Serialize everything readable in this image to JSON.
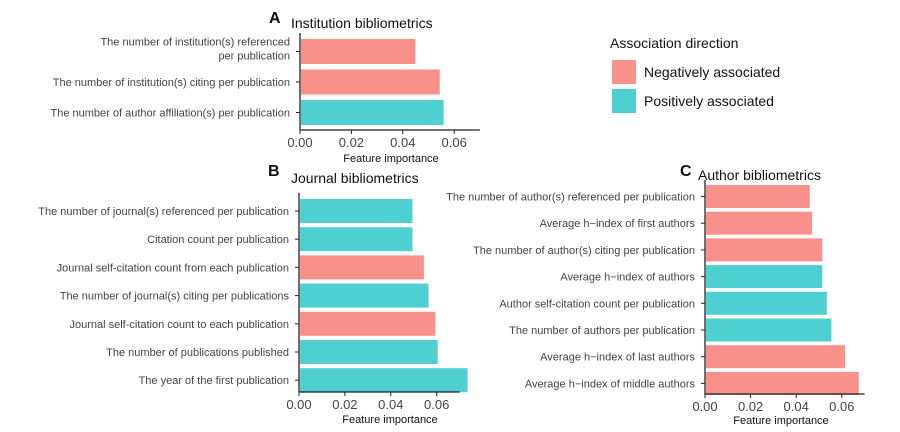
{
  "colors": {
    "negative": "#F8918A",
    "positive": "#4ECFD2"
  },
  "legend": {
    "title": "Association direction",
    "items": [
      {
        "label": "Negatively associated",
        "direction": "negative"
      },
      {
        "label": "Positively associated",
        "direction": "positive"
      }
    ]
  },
  "chart_data": [
    {
      "type": "bar",
      "orientation": "horizontal",
      "letter": "A",
      "title": "Institution bibliometrics",
      "xlabel": "Feature importance",
      "xlim": [
        0,
        0.07
      ],
      "xticks": [
        "0.00",
        "0.02",
        "0.04",
        "0.06"
      ],
      "grid": false,
      "categories": [
        "The number of institution(s) referenced per publication",
        "The number of institution(s) citing per publication",
        "The number of author affiliation(s) per publication"
      ],
      "values": [
        0.0445,
        0.054,
        0.0555
      ],
      "directions": [
        "negative",
        "negative",
        "positive"
      ]
    },
    {
      "type": "bar",
      "orientation": "horizontal",
      "letter": "B",
      "title": "Journal bibliometrics",
      "xlabel": "Feature importance",
      "xlim": [
        0,
        0.07
      ],
      "xticks": [
        "0.00",
        "0.02",
        "0.04",
        "0.06"
      ],
      "grid": false,
      "categories": [
        "The number of journal(s) referenced per publication",
        "Citation count per publication",
        "Journal self-citation count from each publication",
        "The number of journal(s) citing per publications",
        "Journal self-citation count to each publication",
        "The number of publications published",
        "The year of the first publication"
      ],
      "values": [
        0.049,
        0.049,
        0.054,
        0.056,
        0.059,
        0.06,
        0.073
      ],
      "directions": [
        "positive",
        "positive",
        "negative",
        "positive",
        "negative",
        "positive",
        "positive"
      ]
    },
    {
      "type": "bar",
      "orientation": "horizontal",
      "letter": "C",
      "title": "Author bibliometrics",
      "xlabel": "Feature importance",
      "xlim": [
        0,
        0.07
      ],
      "xticks": [
        "0.00",
        "0.02",
        "0.04",
        "0.06"
      ],
      "grid": false,
      "categories": [
        "The number of author(s) referenced per publication",
        "Average h−index of first authors",
        "The number of author(s) citing per publication",
        "Average h−index of authors",
        "Author self-citation count per publication",
        "The number of authors per publication",
        "Average h−index of last authors",
        "Average h−index of middle authors"
      ],
      "values": [
        0.0455,
        0.0465,
        0.051,
        0.051,
        0.053,
        0.055,
        0.061,
        0.067
      ],
      "directions": [
        "negative",
        "negative",
        "negative",
        "positive",
        "positive",
        "positive",
        "negative",
        "negative"
      ]
    }
  ]
}
